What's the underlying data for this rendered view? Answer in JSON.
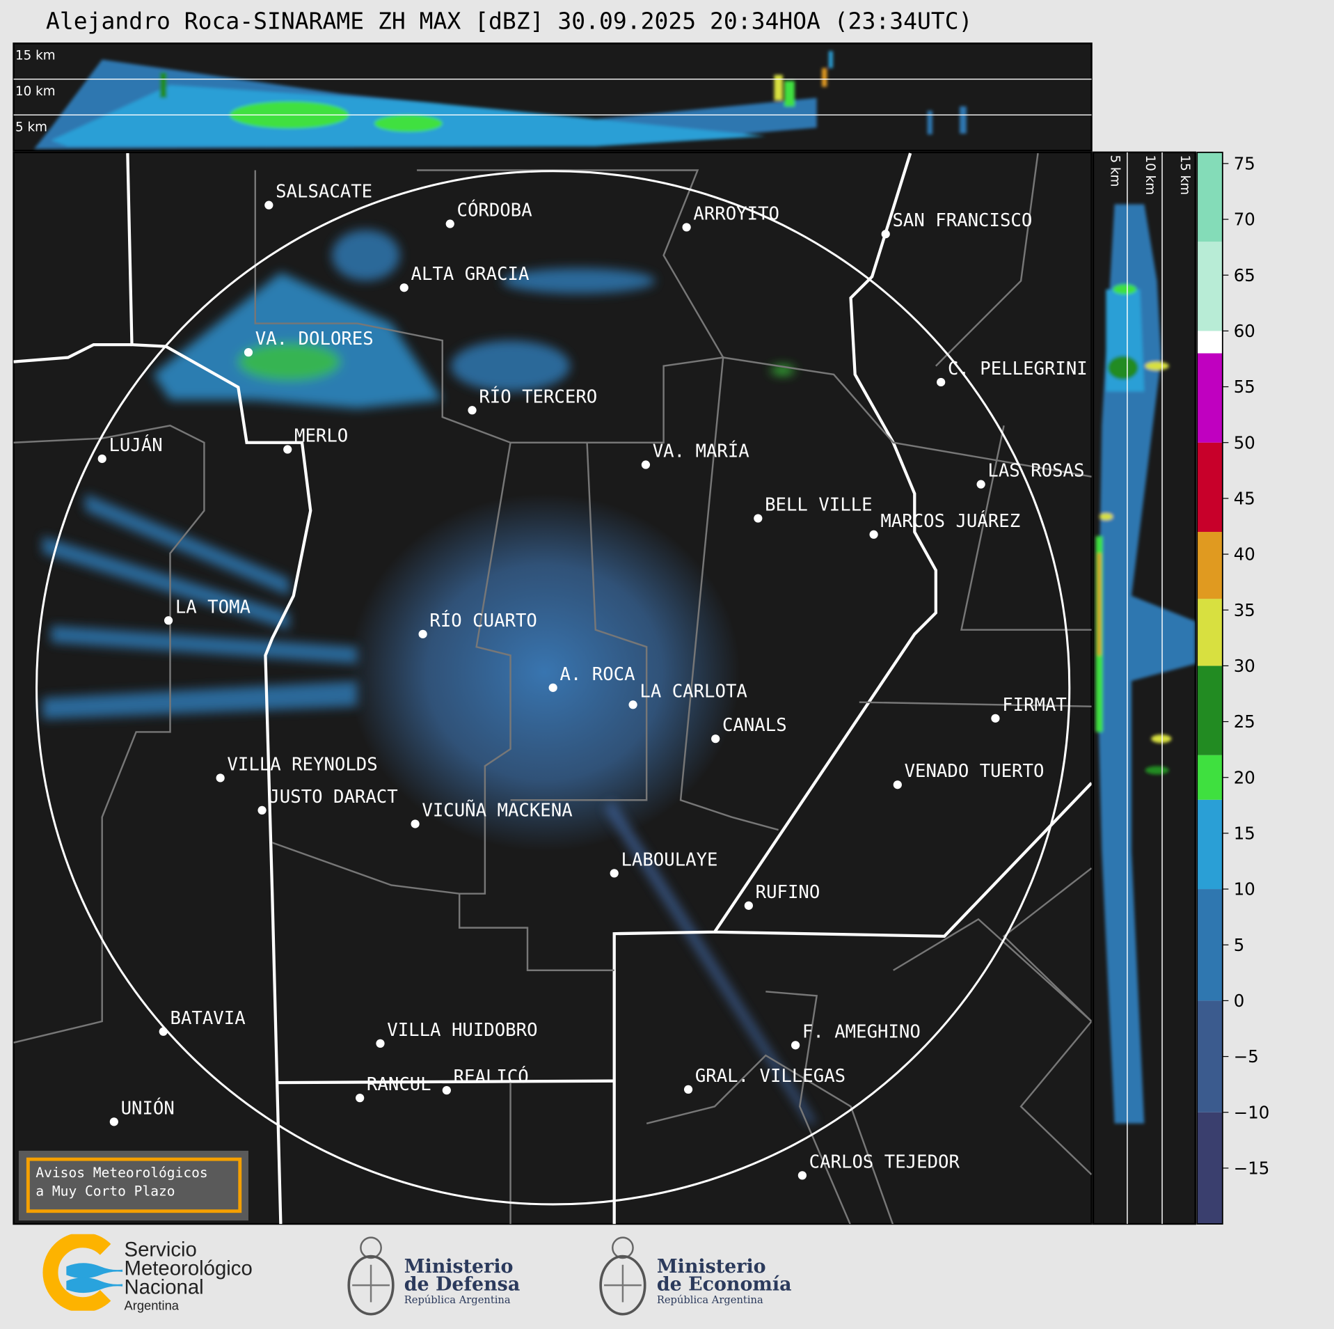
{
  "title": "Alejandro Roca-SINARAME ZH MAX [dBZ] 30.09.2025 20:34HOA (23:34UTC)",
  "cross_section_top": {
    "labels": [
      "15 km",
      "10 km",
      "5 km"
    ]
  },
  "cross_section_right": {
    "labels": [
      "5 km",
      "10 km",
      "15 km"
    ]
  },
  "cities": [
    "SALSACATE",
    "CÓRDOBA",
    "ARROYITO",
    "SAN FRANCISCO",
    "ALTA GRACIA",
    "VA. DOLORES",
    "C. PELLEGRINI",
    "RÍO TERCERO",
    "LUJÁN",
    "MERLO",
    "VA. MARÍA",
    "LAS ROSAS",
    "BELL VILLE",
    "MARCOS JUÁREZ",
    "LA TOMA",
    "RÍO CUARTO",
    "A. ROCA",
    "LA CARLOTA",
    "FIRMAT",
    "CANALS",
    "VILLA REYNOLDS",
    "VENADO TUERTO",
    "JUSTO DARACT",
    "VICUÑA MACKENA",
    "LABOULAYE",
    "RUFINO",
    "BATAVIA",
    "VILLA HUIDOBRO",
    "F. AMEGHINO",
    "REALICÓ",
    "RANCUL",
    "GRAL. VILLEGAS",
    "UNIÓN",
    "CARLOS TEJEDOR"
  ],
  "colorbar": {
    "unit": "dBZ",
    "range": [
      -20,
      76
    ],
    "ticks": [
      "75",
      "70",
      "65",
      "60",
      "55",
      "50",
      "45",
      "40",
      "35",
      "30",
      "25",
      "20",
      "15",
      "10",
      "5",
      "0",
      "−5",
      "−10",
      "−15"
    ],
    "stops": [
      {
        "from": -20,
        "to": -10,
        "color": "#3a3f6e"
      },
      {
        "from": -10,
        "to": 0,
        "color": "#3b5b8e"
      },
      {
        "from": 0,
        "to": 10,
        "color": "#2f77b0"
      },
      {
        "from": 10,
        "to": 18,
        "color": "#2a9fd6"
      },
      {
        "from": 18,
        "to": 22,
        "color": "#3fe03f"
      },
      {
        "from": 22,
        "to": 30,
        "color": "#228b22"
      },
      {
        "from": 30,
        "to": 36,
        "color": "#d8e040"
      },
      {
        "from": 36,
        "to": 42,
        "color": "#e09a20"
      },
      {
        "from": 42,
        "to": 50,
        "color": "#c8002a"
      },
      {
        "from": 50,
        "to": 58,
        "color": "#c000c0"
      },
      {
        "from": 58,
        "to": 60,
        "color": "#ffffff"
      },
      {
        "from": 60,
        "to": 68,
        "color": "#b8ecd6"
      },
      {
        "from": 68,
        "to": 76,
        "color": "#84dcb8"
      }
    ]
  },
  "notice": {
    "line1": "Avisos Meteorológicos",
    "line2": "a Muy Corto Plazo"
  },
  "logos": {
    "smn": {
      "line1": "Servicio",
      "line2": "Meteorológico",
      "line3": "Nacional",
      "line4": "Argentina"
    },
    "defensa": {
      "line1": "Ministerio",
      "line2": "de Defensa",
      "line3": "República Argentina"
    },
    "economia": {
      "line1": "Ministerio",
      "line2": "de Economía",
      "line3": "República Argentina"
    }
  },
  "colors": {
    "background": "#e6e6e6",
    "map": "#1a1a1a",
    "notice_border": "#f5a000"
  }
}
